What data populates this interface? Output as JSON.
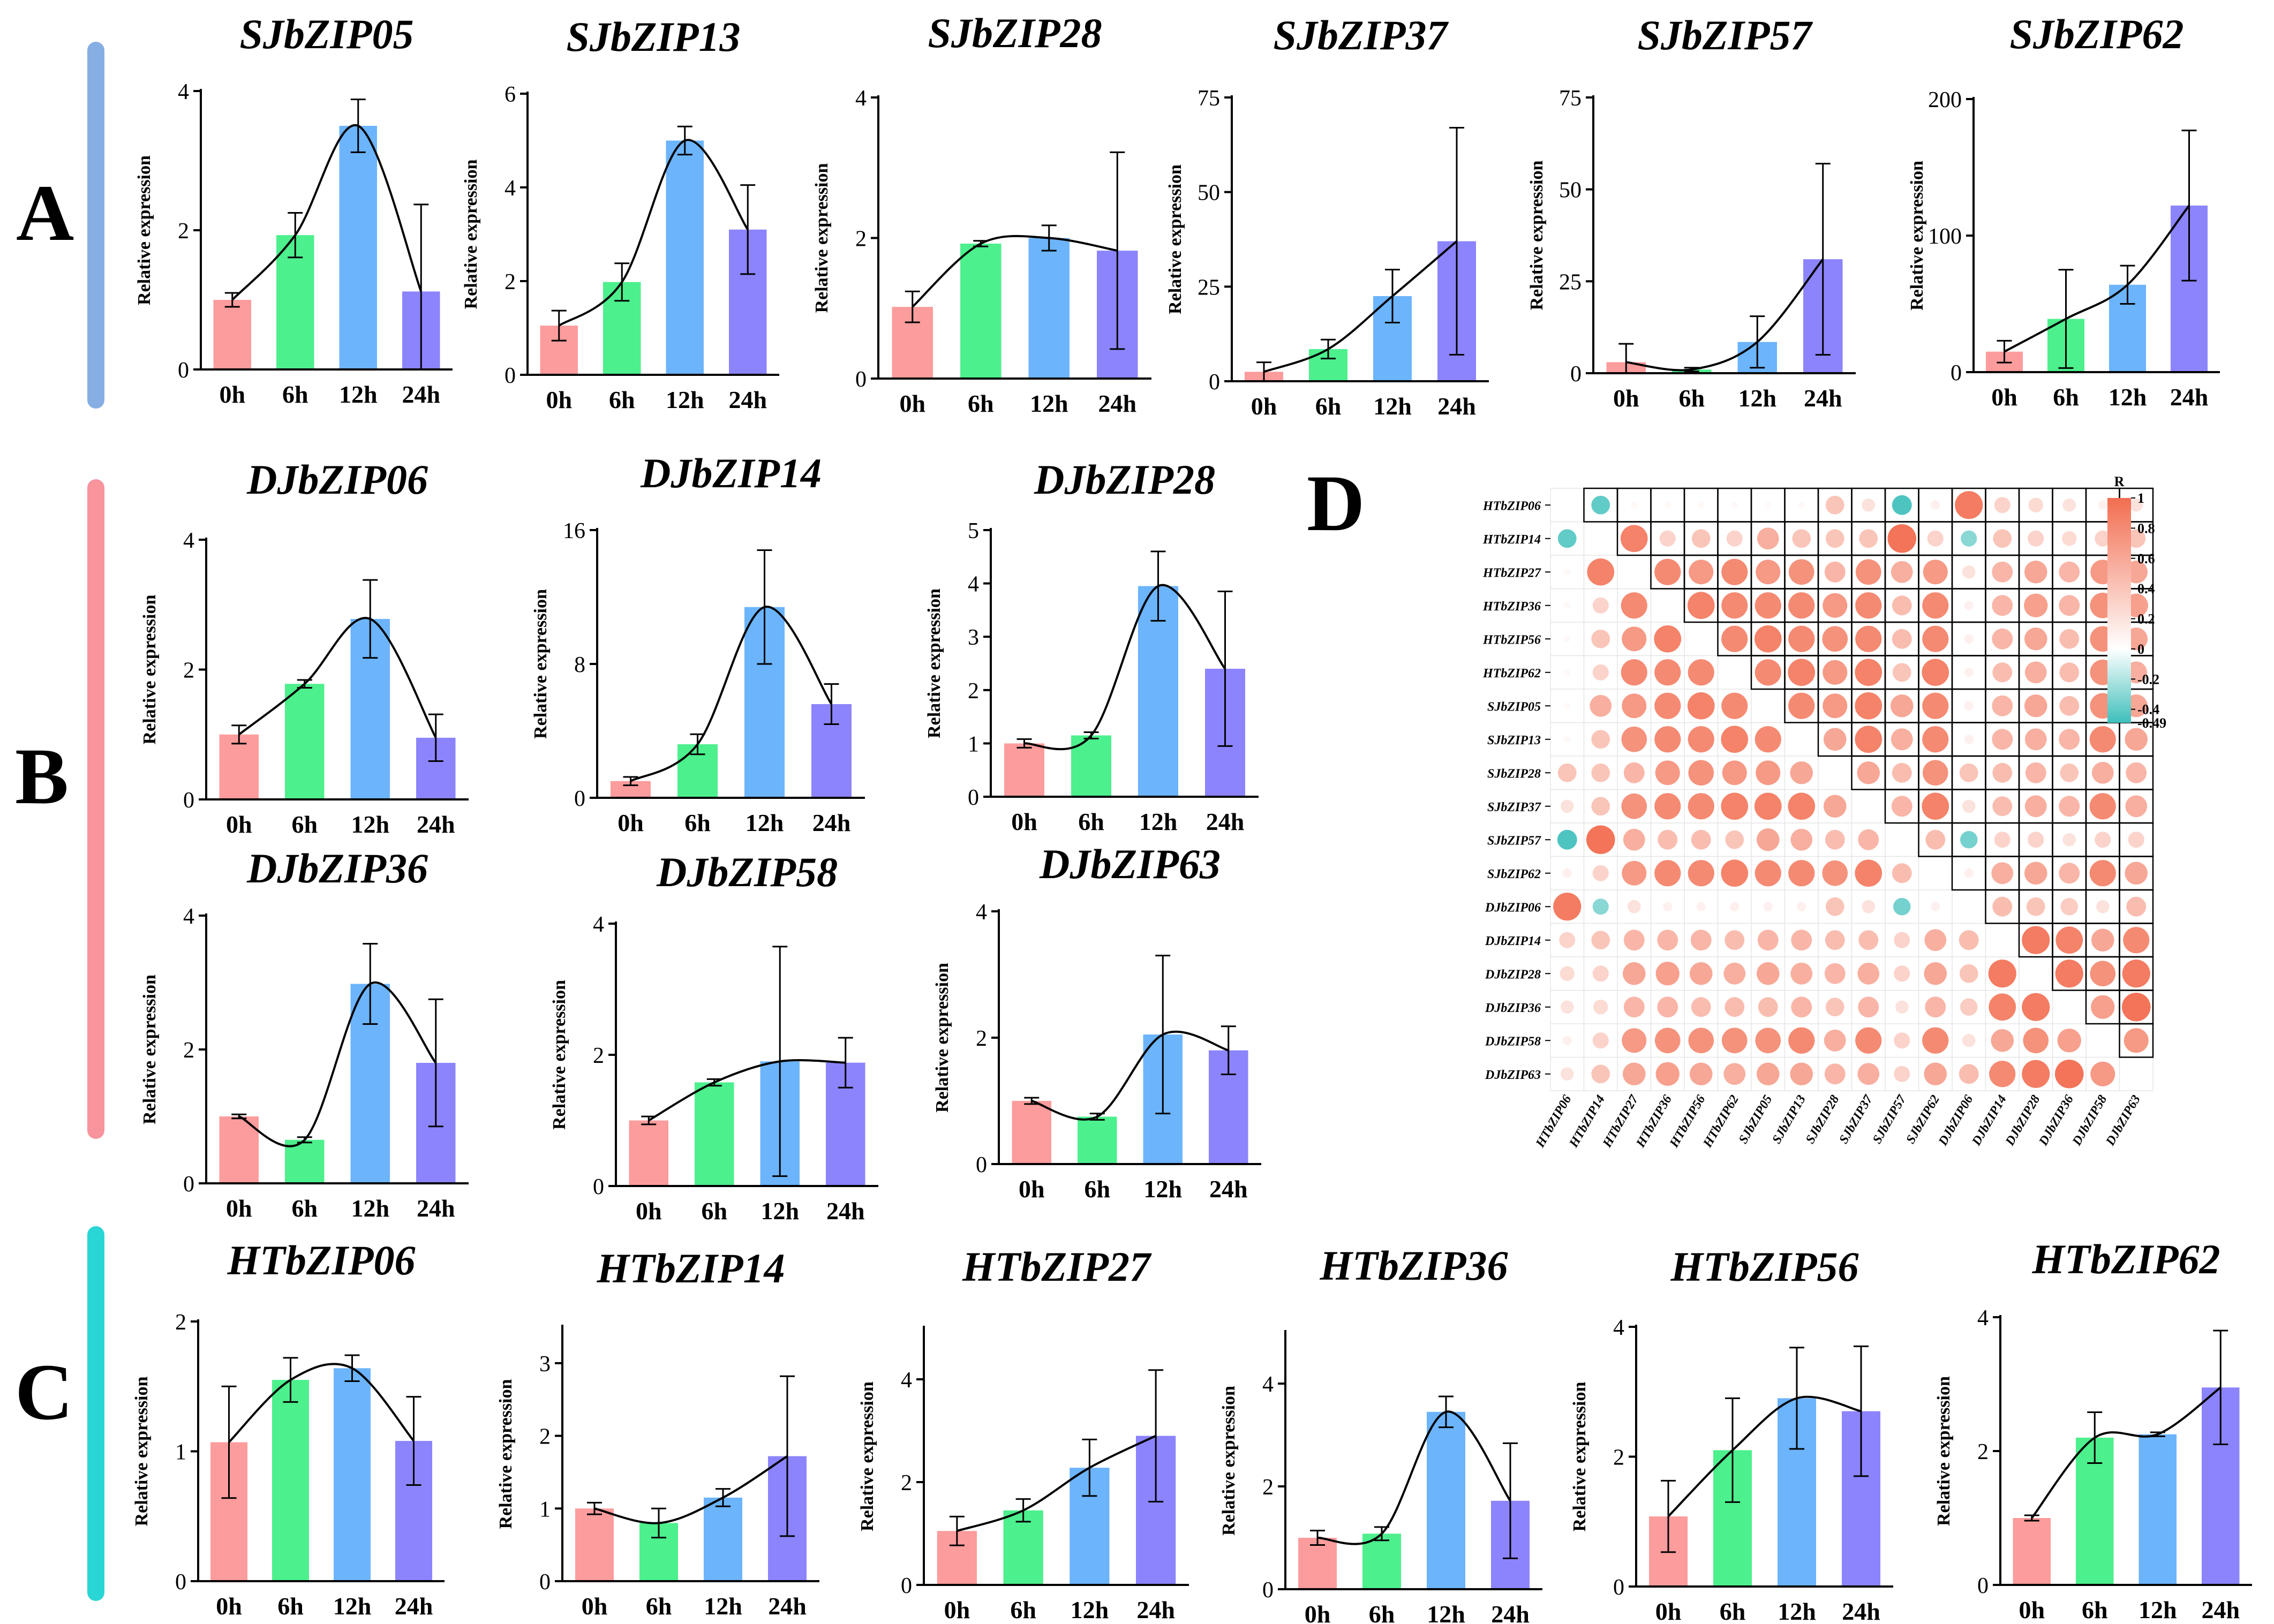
{
  "figure": {
    "panel_labels": [
      "A",
      "B",
      "C",
      "D"
    ],
    "time_labels": [
      "0h",
      "6h",
      "12h",
      "24h"
    ],
    "ylabel": "Relative expression",
    "bar_colors": [
      "#fc9c9c",
      "#4cf08c",
      "#6cb4fc",
      "#8c84fc"
    ],
    "band_colors": {
      "A": "#86aee3",
      "B": "#f7949c",
      "C": "#2ad5d5"
    }
  },
  "chart_data": [
    {
      "id": "SJbZIP05",
      "type": "bar",
      "title": "SJbZIP05",
      "categories": [
        "0h",
        "6h",
        "12h",
        "24h"
      ],
      "values": [
        1.0,
        1.93,
        3.5,
        1.12
      ],
      "errors": [
        0.1,
        0.32,
        0.38,
        1.25
      ],
      "ylim": [
        0,
        4
      ],
      "yticks": [
        0,
        2,
        4
      ],
      "ylabel": "Relative expression"
    },
    {
      "id": "SJbZIP13",
      "type": "bar",
      "title": "SJbZIP13",
      "categories": [
        "0h",
        "6h",
        "12h",
        "24h"
      ],
      "values": [
        1.05,
        1.98,
        5.0,
        3.1
      ],
      "errors": [
        0.32,
        0.4,
        0.3,
        0.95
      ],
      "ylim": [
        0,
        6
      ],
      "yticks": [
        0,
        2,
        4,
        6
      ],
      "ylabel": "Relative expression"
    },
    {
      "id": "SJbZIP28",
      "type": "bar",
      "title": "SJbZIP28",
      "categories": [
        "0h",
        "6h",
        "12h",
        "24h"
      ],
      "values": [
        1.02,
        1.92,
        2.0,
        1.82
      ],
      "errors": [
        0.22,
        0.04,
        0.18,
        1.4
      ],
      "ylim": [
        0,
        4
      ],
      "yticks": [
        0,
        2,
        4
      ],
      "ylabel": "Relative expression"
    },
    {
      "id": "SJbZIP37",
      "type": "bar",
      "title": "SJbZIP37",
      "categories": [
        "0h",
        "6h",
        "12h",
        "24h"
      ],
      "values": [
        2.5,
        8.5,
        22.5,
        37.0
      ],
      "errors": [
        2.5,
        2.5,
        7.0,
        30.0
      ],
      "ylim": [
        0,
        75
      ],
      "yticks": [
        0,
        25,
        50,
        75
      ],
      "ylabel": "Relative expression"
    },
    {
      "id": "SJbZIP57",
      "type": "bar",
      "title": "SJbZIP57",
      "categories": [
        "0h",
        "6h",
        "12h",
        "24h"
      ],
      "values": [
        3.0,
        1.0,
        8.5,
        31.0
      ],
      "errors": [
        5.0,
        0.5,
        7.0,
        26.0
      ],
      "ylim": [
        0,
        75
      ],
      "yticks": [
        0,
        25,
        50,
        75
      ],
      "ylabel": "Relative expression"
    },
    {
      "id": "SJbZIP62",
      "type": "bar",
      "title": "SJbZIP62",
      "categories": [
        "0h",
        "6h",
        "12h",
        "24h"
      ],
      "values": [
        15.0,
        39.0,
        64.0,
        122.0
      ],
      "errors": [
        8.0,
        36.0,
        14.0,
        55.0
      ],
      "ylim": [
        0,
        200
      ],
      "yticks": [
        0,
        100,
        200
      ],
      "ylabel": "Relative expression"
    },
    {
      "id": "DJbZIP06",
      "type": "bar",
      "title": "DJbZIP06",
      "categories": [
        "0h",
        "6h",
        "12h",
        "24h"
      ],
      "values": [
        1.0,
        1.78,
        2.78,
        0.95
      ],
      "errors": [
        0.14,
        0.06,
        0.6,
        0.36
      ],
      "ylim": [
        0,
        4
      ],
      "yticks": [
        0,
        2,
        4
      ],
      "ylabel": "Relative expression"
    },
    {
      "id": "DJbZIP14",
      "type": "bar",
      "title": "DJbZIP14",
      "categories": [
        "0h",
        "6h",
        "12h",
        "24h"
      ],
      "values": [
        1.0,
        3.2,
        11.4,
        5.6
      ],
      "errors": [
        0.25,
        0.6,
        3.4,
        1.2
      ],
      "ylim": [
        0,
        16
      ],
      "yticks": [
        0,
        8,
        16
      ],
      "ylabel": "Relative expression"
    },
    {
      "id": "DJbZIP28",
      "type": "bar",
      "title": "DJbZIP28",
      "categories": [
        "0h",
        "6h",
        "12h",
        "24h"
      ],
      "values": [
        1.0,
        1.15,
        3.95,
        2.4
      ],
      "errors": [
        0.08,
        0.06,
        0.65,
        1.45
      ],
      "ylim": [
        0,
        5
      ],
      "yticks": [
        0,
        1,
        2,
        3,
        4,
        5
      ],
      "ylabel": "Relative expression"
    },
    {
      "id": "DJbZIP36",
      "type": "bar",
      "title": "DJbZIP36",
      "categories": [
        "0h",
        "6h",
        "12h",
        "24h"
      ],
      "values": [
        1.0,
        0.65,
        2.98,
        1.8
      ],
      "errors": [
        0.03,
        0.04,
        0.6,
        0.95
      ],
      "ylim": [
        0,
        4
      ],
      "yticks": [
        0,
        2,
        4
      ],
      "ylabel": "Relative expression"
    },
    {
      "id": "DJbZIP58",
      "type": "bar",
      "title": "DJbZIP58",
      "categories": [
        "0h",
        "6h",
        "12h",
        "24h"
      ],
      "values": [
        1.0,
        1.58,
        1.9,
        1.88
      ],
      "errors": [
        0.06,
        0.05,
        1.75,
        0.38
      ],
      "ylim": [
        0,
        4
      ],
      "yticks": [
        0,
        2,
        4
      ],
      "ylabel": "Relative expression"
    },
    {
      "id": "DJbZIP63",
      "type": "bar",
      "title": "DJbZIP63",
      "categories": [
        "0h",
        "6h",
        "12h",
        "24h"
      ],
      "values": [
        1.0,
        0.75,
        2.05,
        1.8
      ],
      "errors": [
        0.05,
        0.05,
        1.25,
        0.38
      ],
      "ylim": [
        0,
        4
      ],
      "yticks": [
        0,
        2,
        4
      ],
      "ylabel": "Relative expression"
    },
    {
      "id": "HTbZIP06",
      "type": "bar",
      "title": "HTbZIP06",
      "categories": [
        "0h",
        "6h",
        "12h",
        "24h"
      ],
      "values": [
        1.07,
        1.55,
        1.64,
        1.08
      ],
      "errors": [
        0.43,
        0.17,
        0.1,
        0.34
      ],
      "ylim": [
        0,
        2
      ],
      "yticks": [
        0,
        1,
        2
      ],
      "ylabel": "Relative expression"
    },
    {
      "id": "HTbZIP14",
      "type": "bar",
      "title": "HTbZIP14",
      "categories": [
        "0h",
        "6h",
        "12h",
        "24h"
      ],
      "values": [
        1.0,
        0.8,
        1.15,
        1.72
      ],
      "errors": [
        0.08,
        0.2,
        0.12,
        1.1
      ],
      "ylim": [
        0,
        3.5
      ],
      "yticks": [
        0,
        1,
        2,
        3
      ],
      "ylabel": "Relative expression"
    },
    {
      "id": "HTbZIP27",
      "type": "bar",
      "title": "HTbZIP27",
      "categories": [
        "0h",
        "6h",
        "12h",
        "24h"
      ],
      "values": [
        1.05,
        1.45,
        2.28,
        2.9
      ],
      "errors": [
        0.28,
        0.22,
        0.55,
        1.28
      ],
      "ylim": [
        0,
        5
      ],
      "yticks": [
        0,
        2,
        4
      ],
      "ylabel": "Relative expression"
    },
    {
      "id": "HTbZIP36",
      "type": "bar",
      "title": "HTbZIP36",
      "categories": [
        "0h",
        "6h",
        "12h",
        "24h"
      ],
      "values": [
        1.0,
        1.08,
        3.45,
        1.72
      ],
      "errors": [
        0.14,
        0.13,
        0.3,
        1.12
      ],
      "ylim": [
        0,
        5
      ],
      "yticks": [
        0,
        2,
        4
      ],
      "ylabel": "Relative expression"
    },
    {
      "id": "HTbZIP56",
      "type": "bar",
      "title": "HTbZIP56",
      "categories": [
        "0h",
        "6h",
        "12h",
        "24h"
      ],
      "values": [
        1.08,
        2.1,
        2.9,
        2.7
      ],
      "errors": [
        0.55,
        0.8,
        0.78,
        1.0
      ],
      "ylim": [
        0,
        4
      ],
      "yticks": [
        0,
        2,
        4
      ],
      "ylabel": "Relative expression"
    },
    {
      "id": "HTbZIP62",
      "type": "bar",
      "title": "HTbZIP62",
      "categories": [
        "0h",
        "6h",
        "12h",
        "24h"
      ],
      "values": [
        1.0,
        2.2,
        2.25,
        2.95
      ],
      "errors": [
        0.04,
        0.38,
        0.03,
        0.85
      ],
      "ylim": [
        0,
        4
      ],
      "yticks": [
        0,
        2,
        4
      ],
      "ylabel": "Relative expression"
    },
    {
      "id": "correlation",
      "type": "heatmap",
      "title": "R",
      "genes": [
        "HTbZIP06",
        "HTbZIP14",
        "HTbZIP27",
        "HTbZIP36",
        "HTbZIP56",
        "HTbZIP62",
        "SJbZIP05",
        "SJbZIP13",
        "SJbZIP28",
        "SJbZIP37",
        "SJbZIP57",
        "SJbZIP62",
        "DJbZIP06",
        "DJbZIP14",
        "DJbZIP28",
        "DJbZIP36",
        "DJbZIP58",
        "DJbZIP63"
      ],
      "colorbar_ticks": [
        "1",
        "0.8",
        "0.6",
        "0.4",
        "0.2",
        "0",
        "-0.2",
        "-0.4",
        "-0.49"
      ],
      "colorbar_range": [
        -0.49,
        1
      ],
      "colors": {
        "pos": "#f26d50",
        "neg": "#3ebfbb",
        "mid": "#ffffff"
      },
      "matrix": [
        [
          1,
          -0.4,
          0.05,
          0.05,
          0.05,
          0.05,
          0.05,
          0.05,
          0.4,
          0.2,
          -0.45,
          0.1,
          0.9,
          0.3,
          0.25,
          0.2,
          0.1,
          0.2
        ],
        [
          -0.4,
          1,
          0.85,
          0.3,
          0.4,
          0.3,
          0.55,
          0.4,
          0.4,
          0.4,
          0.95,
          0.3,
          -0.3,
          0.4,
          0.3,
          0.25,
          0.3,
          0.4
        ],
        [
          0.05,
          0.85,
          1,
          0.8,
          0.7,
          0.8,
          0.7,
          0.75,
          0.5,
          0.75,
          0.55,
          0.7,
          0.2,
          0.5,
          0.6,
          0.5,
          0.7,
          0.6
        ],
        [
          0.05,
          0.3,
          0.8,
          1,
          0.85,
          0.8,
          0.8,
          0.8,
          0.7,
          0.8,
          0.45,
          0.8,
          0.1,
          0.5,
          0.65,
          0.5,
          0.75,
          0.65
        ],
        [
          0.05,
          0.4,
          0.7,
          0.85,
          1,
          0.8,
          0.85,
          0.8,
          0.75,
          0.8,
          0.45,
          0.8,
          0.1,
          0.5,
          0.6,
          0.45,
          0.75,
          0.6
        ],
        [
          0.05,
          0.3,
          0.8,
          0.8,
          0.8,
          1,
          0.8,
          0.85,
          0.7,
          0.85,
          0.4,
          0.85,
          0.1,
          0.45,
          0.55,
          0.45,
          0.75,
          0.55
        ],
        [
          0.05,
          0.55,
          0.7,
          0.8,
          0.85,
          0.8,
          1,
          0.8,
          0.7,
          0.85,
          0.6,
          0.8,
          0.1,
          0.5,
          0.6,
          0.45,
          0.75,
          0.6
        ],
        [
          0.05,
          0.4,
          0.75,
          0.8,
          0.8,
          0.85,
          0.8,
          1,
          0.6,
          0.85,
          0.55,
          0.8,
          0.1,
          0.5,
          0.55,
          0.5,
          0.8,
          0.6
        ],
        [
          0.4,
          0.4,
          0.5,
          0.7,
          0.75,
          0.7,
          0.7,
          0.6,
          1,
          0.6,
          0.45,
          0.75,
          0.4,
          0.45,
          0.5,
          0.4,
          0.55,
          0.5
        ],
        [
          0.2,
          0.4,
          0.75,
          0.8,
          0.8,
          0.85,
          0.85,
          0.85,
          0.6,
          1,
          0.5,
          0.85,
          0.2,
          0.45,
          0.55,
          0.5,
          0.8,
          0.55
        ],
        [
          -0.45,
          0.95,
          0.55,
          0.45,
          0.45,
          0.4,
          0.6,
          0.55,
          0.45,
          0.5,
          1,
          0.45,
          -0.35,
          0.3,
          0.3,
          0.2,
          0.3,
          0.3
        ],
        [
          0.1,
          0.3,
          0.7,
          0.8,
          0.8,
          0.85,
          0.8,
          0.8,
          0.75,
          0.85,
          0.45,
          1,
          0.1,
          0.55,
          0.6,
          0.5,
          0.8,
          0.6
        ],
        [
          0.9,
          -0.3,
          0.2,
          0.1,
          0.1,
          0.1,
          0.1,
          0.1,
          0.4,
          0.2,
          -0.35,
          0.1,
          1,
          0.45,
          0.4,
          0.35,
          0.2,
          0.45
        ],
        [
          0.3,
          0.4,
          0.5,
          0.5,
          0.5,
          0.45,
          0.5,
          0.5,
          0.45,
          0.45,
          0.3,
          0.55,
          0.45,
          1,
          0.9,
          0.85,
          0.6,
          0.8
        ],
        [
          0.25,
          0.3,
          0.6,
          0.65,
          0.6,
          0.55,
          0.6,
          0.55,
          0.5,
          0.55,
          0.3,
          0.6,
          0.4,
          0.9,
          1,
          0.9,
          0.75,
          0.9
        ],
        [
          0.2,
          0.25,
          0.5,
          0.5,
          0.45,
          0.45,
          0.45,
          0.5,
          0.4,
          0.5,
          0.2,
          0.5,
          0.35,
          0.85,
          0.9,
          1,
          0.65,
          0.95
        ],
        [
          0.1,
          0.3,
          0.7,
          0.75,
          0.75,
          0.75,
          0.75,
          0.8,
          0.55,
          0.8,
          0.3,
          0.8,
          0.2,
          0.6,
          0.75,
          0.65,
          1,
          0.7
        ],
        [
          0.2,
          0.4,
          0.6,
          0.65,
          0.6,
          0.55,
          0.6,
          0.6,
          0.5,
          0.55,
          0.3,
          0.6,
          0.45,
          0.8,
          0.9,
          0.95,
          0.7,
          1
        ]
      ]
    }
  ]
}
